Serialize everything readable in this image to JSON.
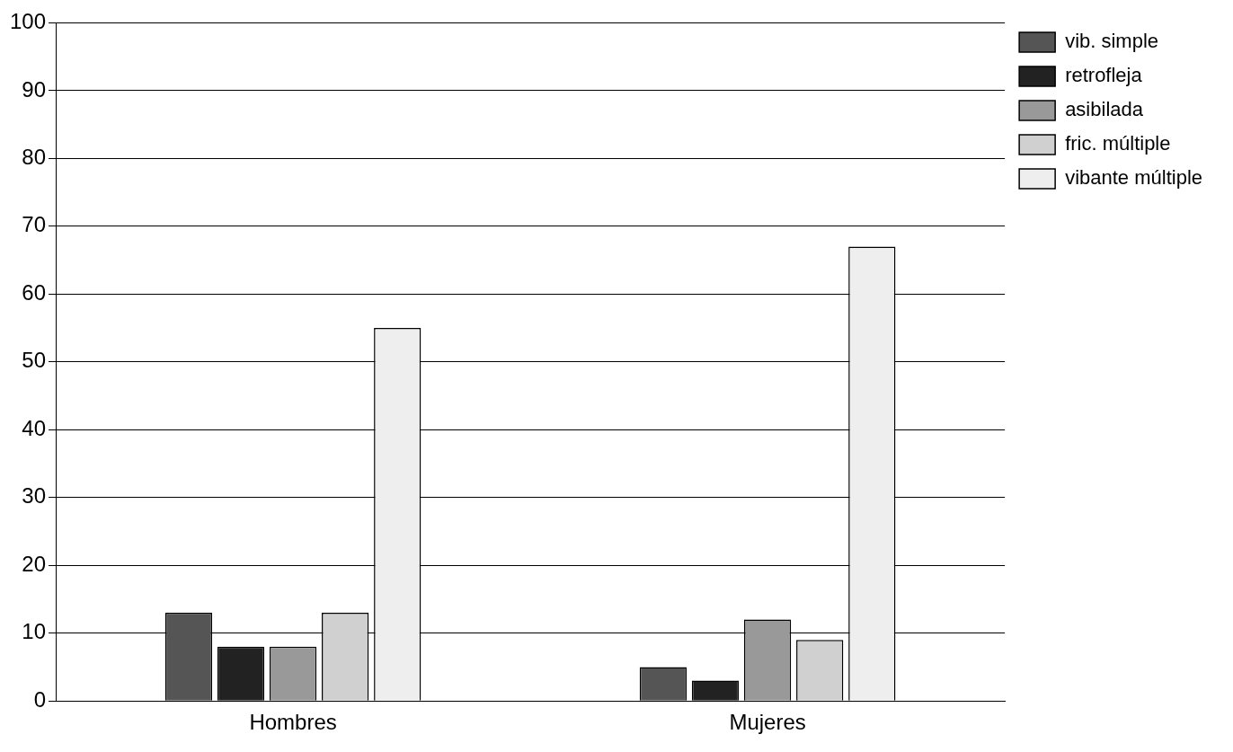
{
  "chart_data": {
    "type": "bar",
    "categories": [
      "Hombres",
      "Mujeres"
    ],
    "series": [
      {
        "name": "vib. simple",
        "color": "#555555",
        "values": [
          13,
          5
        ]
      },
      {
        "name": "retrofleja",
        "color": "#222222",
        "values": [
          8,
          3
        ]
      },
      {
        "name": "asibilada",
        "color": "#999999",
        "values": [
          8,
          12
        ]
      },
      {
        "name": "fric. múltiple",
        "color": "#d0d0d0",
        "values": [
          13,
          9
        ]
      },
      {
        "name": "vibante múltiple",
        "color": "#eeeeee",
        "values": [
          55,
          67
        ]
      }
    ],
    "ylim": [
      0,
      100
    ],
    "yticks": [
      0,
      10,
      20,
      30,
      40,
      50,
      60,
      70,
      80,
      90,
      100
    ],
    "grid": "y",
    "legend": "top right"
  }
}
